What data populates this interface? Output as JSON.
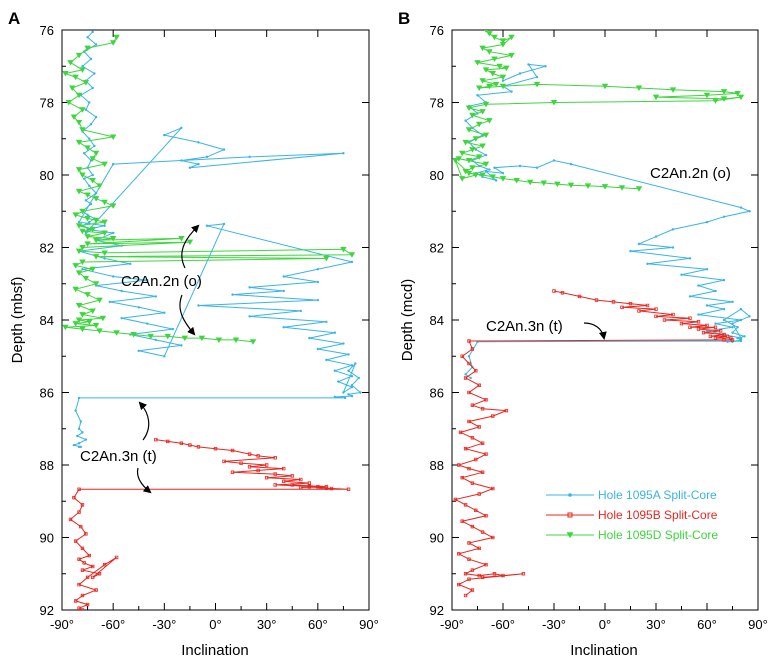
{
  "chart_data": [
    {
      "type": "line",
      "panel": "A",
      "xlabel": "Inclination",
      "ylabel": "Depth (mbsf)",
      "xlim": [
        -90,
        90
      ],
      "ylim": [
        92,
        76
      ],
      "xticks": [
        "-90°",
        "-60°",
        "-30°",
        "0°",
        "30°",
        "60°",
        "90°"
      ],
      "yticks": [
        "76",
        "78",
        "80",
        "82",
        "84",
        "86",
        "88",
        "90",
        "92"
      ],
      "series": [
        {
          "name": "Hole 1095A Split-Core",
          "color": "#3ab4e6",
          "x": [
            -72,
            -75,
            -70,
            -77,
            -73,
            -78,
            -71,
            -76,
            -72,
            -79,
            -74,
            -76,
            -70,
            -73,
            -78,
            -74,
            -71,
            -77,
            -73,
            -75,
            -72,
            -77,
            -74,
            -70,
            -76,
            -73,
            -78,
            -75,
            -71,
            -74,
            -78,
            -72,
            -76,
            -20,
            -30,
            -10,
            5,
            -5,
            -20,
            -10,
            -15,
            75,
            20,
            -60,
            -80,
            -65,
            -75,
            -60,
            -70,
            -55,
            -80,
            -65,
            -50,
            -78,
            -60,
            -40,
            -70,
            -55,
            -35,
            -62,
            -45,
            -30,
            -55,
            -40,
            -25,
            -50,
            -35,
            -20,
            -45,
            -30,
            5,
            -5,
            80,
            60,
            40,
            60,
            20,
            40,
            10,
            60,
            -10,
            50,
            20,
            65,
            40,
            70,
            55,
            75,
            60,
            78,
            65,
            80,
            70,
            80,
            72,
            80,
            75,
            82,
            78,
            84,
            80,
            85,
            78,
            80,
            70,
            76,
            -80,
            -82,
            -79,
            -80,
            -78,
            -81,
            -76,
            -80,
            -83,
            -79,
            -80
          ],
          "y": [
            76.05,
            76.2,
            76.4,
            76.6,
            76.8,
            77.0,
            77.2,
            77.4,
            77.6,
            77.8,
            78.0,
            78.2,
            78.4,
            78.6,
            78.8,
            79.0,
            79.2,
            79.4,
            79.6,
            79.8,
            80.0,
            80.1,
            80.3,
            80.5,
            80.7,
            80.8,
            81.0,
            81.1,
            81.2,
            81.3,
            81.4,
            81.5,
            81.6,
            78.7,
            78.9,
            79.1,
            79.3,
            79.5,
            79.6,
            79.7,
            79.8,
            79.4,
            79.5,
            79.7,
            81.3,
            81.4,
            81.5,
            81.6,
            81.8,
            81.95,
            82.1,
            82.3,
            82.45,
            82.6,
            82.8,
            82.9,
            83.05,
            83.2,
            83.35,
            83.5,
            83.65,
            83.8,
            83.95,
            84.1,
            84.25,
            84.4,
            84.55,
            84.7,
            84.85,
            85.0,
            81.35,
            81.4,
            82.4,
            82.6,
            82.8,
            82.95,
            83.1,
            83.2,
            83.3,
            83.45,
            83.6,
            83.75,
            83.9,
            84.05,
            84.2,
            84.35,
            84.5,
            84.65,
            84.8,
            84.95,
            85.1,
            85.25,
            85.4,
            85.55,
            85.7,
            85.85,
            86.0,
            85.2,
            85.4,
            85.6,
            85.8,
            86.0,
            86.05,
            86.1,
            86.12,
            86.15,
            86.15,
            86.5,
            86.8,
            87.0,
            87.1,
            87.2,
            87.3,
            87.4,
            87.45,
            87.5,
            87.5
          ]
        },
        {
          "name": "Hole 1095B Split-Core",
          "color": "#e8261f",
          "x": [
            -35,
            -28,
            -20,
            -15,
            -10,
            0,
            10,
            20,
            25,
            35,
            5,
            15,
            30,
            20,
            40,
            25,
            10,
            35,
            45,
            30,
            50,
            40,
            55,
            35,
            60,
            50,
            65,
            45,
            55,
            62,
            68,
            55,
            65,
            78,
            -80,
            -83,
            -78,
            -80,
            -85,
            -79,
            -76,
            -82,
            -78,
            -74,
            -80,
            -77,
            -72,
            -78,
            -68,
            -72,
            -58,
            -65,
            -75,
            -80,
            -70,
            -78,
            -82,
            -75,
            -80,
            -78
          ],
          "y": [
            87.3,
            87.35,
            87.4,
            87.45,
            87.5,
            87.55,
            87.6,
            87.7,
            87.75,
            87.8,
            87.9,
            87.95,
            88.0,
            88.05,
            88.1,
            88.15,
            88.2,
            88.25,
            88.3,
            88.35,
            88.4,
            88.45,
            88.5,
            88.55,
            88.6,
            88.62,
            88.6,
            88.55,
            88.58,
            88.62,
            88.65,
            88.6,
            88.64,
            88.67,
            88.67,
            88.9,
            89.1,
            89.3,
            89.5,
            89.7,
            89.9,
            90.1,
            90.3,
            90.5,
            90.6,
            90.7,
            90.8,
            90.9,
            91.0,
            91.1,
            90.55,
            90.75,
            91.1,
            91.3,
            91.45,
            91.6,
            91.75,
            91.85,
            91.95,
            92.0
          ]
        },
        {
          "name": "Hole 1095D Split-Core",
          "color": "#3dd63d",
          "x": [
            -58,
            -60,
            -75,
            -80,
            -85,
            -78,
            -88,
            -82,
            -76,
            -84,
            -80,
            -86,
            -78,
            -83,
            -80,
            -78,
            -60,
            -80,
            -75,
            -70,
            -72,
            -65,
            -80,
            -78,
            -72,
            -68,
            -80,
            -75,
            -70,
            -65,
            -60,
            -78,
            -82,
            -75,
            -70,
            -65,
            -80,
            -72,
            -78,
            -65,
            -75,
            -60,
            -70,
            -20,
            -75,
            -15,
            -78,
            -80,
            -65,
            75,
            80,
            -70,
            65,
            -78,
            -82,
            -72,
            -80,
            -76,
            -70,
            -82,
            -75,
            -68,
            -80,
            -72,
            -78,
            -66,
            -80,
            -74,
            -82,
            -70,
            -88,
            -78,
            -68,
            -58,
            -48,
            -38,
            -28,
            -18,
            -8,
            2,
            12,
            22
          ],
          "y": [
            76.2,
            76.35,
            76.5,
            76.7,
            76.9,
            77.1,
            77.2,
            77.3,
            77.45,
            77.6,
            77.8,
            78.0,
            78.2,
            78.4,
            78.55,
            78.75,
            78.95,
            79.1,
            79.25,
            79.4,
            79.55,
            79.7,
            79.85,
            80.0,
            80.15,
            80.3,
            80.45,
            80.55,
            80.65,
            80.75,
            80.85,
            81.0,
            81.1,
            81.2,
            81.25,
            81.3,
            81.4,
            81.5,
            81.55,
            81.6,
            81.7,
            81.75,
            81.8,
            81.75,
            81.9,
            81.85,
            82.0,
            82.1,
            82.15,
            82.05,
            82.2,
            82.25,
            82.3,
            82.4,
            82.5,
            82.6,
            82.7,
            82.85,
            83.0,
            83.15,
            83.3,
            83.45,
            83.6,
            83.75,
            83.85,
            83.95,
            84.0,
            84.05,
            84.1,
            84.15,
            84.2,
            84.25,
            84.3,
            84.35,
            84.4,
            84.45,
            84.45,
            84.5,
            84.5,
            84.55,
            84.55,
            84.6
          ]
        }
      ],
      "annotations": [
        {
          "text": "C2An.2n (o)",
          "x": -47,
          "y": 83.2
        },
        {
          "text": "C2An.3n (t)",
          "x": -55,
          "y": 87.9
        }
      ]
    },
    {
      "type": "line",
      "panel": "B",
      "xlabel": "Inclination",
      "ylabel": "Depth (mcd)",
      "xlim": [
        -90,
        90
      ],
      "ylim": [
        92,
        76
      ],
      "xticks": [
        "-90°",
        "-60°",
        "-30°",
        "0°",
        "30°",
        "60°",
        "90°"
      ],
      "yticks": [
        "76",
        "78",
        "80",
        "82",
        "84",
        "86",
        "88",
        "90",
        "92"
      ],
      "legend_position": "bottom-right",
      "series": [
        {
          "name": "Hole 1095A Split-Core",
          "color": "#3ab4e6",
          "x": [
            -60,
            -50,
            -35,
            -45,
            -40,
            -60,
            -55,
            -75,
            -70,
            -80,
            -75,
            -82,
            -78,
            -72,
            -80,
            -76,
            -70,
            -78,
            -74,
            -68,
            -76,
            -72,
            -64,
            -70,
            -60,
            -65,
            -50,
            -40,
            -30,
            -20,
            80,
            85,
            70,
            60,
            40,
            30,
            20,
            40,
            15,
            50,
            25,
            60,
            45,
            70,
            55,
            65,
            50,
            75,
            60,
            70,
            55,
            80,
            65,
            75,
            60,
            70,
            80,
            75,
            85,
            80,
            70,
            78,
            75,
            82,
            78,
            80,
            75,
            72,
            80,
            -75,
            -80,
            -78,
            -82,
            -79
          ],
          "y": [
            77.4,
            77.2,
            77.0,
            76.95,
            77.3,
            77.55,
            77.7,
            77.8,
            78.0,
            78.1,
            78.3,
            78.5,
            78.7,
            78.9,
            79.1,
            79.3,
            79.45,
            79.6,
            79.75,
            79.85,
            79.95,
            80.05,
            80.15,
            79.9,
            79.95,
            79.8,
            79.75,
            79.8,
            79.6,
            79.7,
            80.9,
            81.0,
            81.15,
            81.3,
            81.5,
            81.7,
            81.9,
            82.0,
            82.1,
            82.3,
            82.45,
            82.6,
            82.75,
            82.9,
            83.05,
            83.2,
            83.35,
            83.5,
            83.6,
            83.7,
            83.85,
            84.0,
            84.1,
            84.2,
            84.3,
            84.4,
            84.5,
            84.1,
            83.9,
            83.7,
            84.0,
            84.2,
            84.35,
            84.45,
            84.5,
            84.55,
            84.6,
            84.6,
            84.58,
            84.6,
            85.0,
            85.3,
            85.5,
            85.6
          ]
        },
        {
          "name": "Hole 1095B Split-Core",
          "color": "#e8261f",
          "x": [
            -30,
            -25,
            -15,
            -5,
            5,
            15,
            25,
            10,
            30,
            20,
            40,
            30,
            50,
            35,
            55,
            45,
            60,
            50,
            65,
            55,
            68,
            58,
            70,
            62,
            72,
            65,
            74,
            75,
            70,
            -80,
            -78,
            -84,
            -80,
            -76,
            -82,
            -74,
            -80,
            -70,
            -78,
            -72,
            -58,
            -66,
            -80,
            -74,
            -85,
            -78,
            -72,
            -82,
            -70,
            -76,
            -86,
            -80,
            -72,
            -84,
            -78,
            -66,
            -74,
            -88,
            -82,
            -76,
            -70,
            -84,
            -78,
            -72,
            -66,
            -80,
            -74,
            -86,
            -80,
            -70,
            -78,
            -82,
            -74,
            -65,
            -60,
            -72,
            -48,
            -80,
            -86,
            -78,
            -82
          ],
          "y": [
            83.2,
            83.25,
            83.35,
            83.45,
            83.5,
            83.55,
            83.6,
            83.65,
            83.7,
            83.75,
            83.85,
            83.9,
            83.95,
            84.0,
            84.05,
            84.1,
            84.15,
            84.2,
            84.2,
            84.25,
            84.3,
            84.35,
            84.4,
            84.45,
            84.45,
            84.5,
            84.5,
            84.55,
            84.55,
            84.58,
            84.8,
            85.0,
            85.2,
            85.4,
            85.6,
            85.8,
            86.0,
            86.2,
            86.35,
            86.45,
            86.5,
            86.65,
            86.8,
            86.95,
            87.1,
            87.25,
            87.4,
            87.55,
            87.7,
            87.85,
            88.0,
            88.1,
            88.2,
            88.35,
            88.5,
            88.65,
            88.8,
            88.95,
            89.1,
            89.25,
            89.4,
            89.55,
            89.7,
            89.85,
            90.0,
            90.15,
            90.3,
            90.45,
            90.6,
            90.75,
            90.9,
            91.0,
            91.05,
            91.0,
            91.05,
            91.1,
            91.0,
            91.15,
            91.3,
            91.45,
            91.6
          ]
        },
        {
          "name": "Hole 1095D Split-Core",
          "color": "#3dd63d",
          "x": [
            -70,
            -68,
            -65,
            -60,
            -55,
            -60,
            -72,
            -68,
            -55,
            -65,
            -75,
            -62,
            -58,
            -70,
            -66,
            -60,
            -72,
            -64,
            -68,
            -74,
            -60,
            -40,
            0,
            20,
            40,
            70,
            78,
            60,
            30,
            70,
            80,
            65,
            -30,
            -70,
            -80,
            -72,
            -78,
            -68,
            -74,
            -80,
            -70,
            -76,
            -82,
            -72,
            -78,
            -84,
            -74,
            -80,
            -86,
            -70,
            -78,
            -82,
            -76,
            -84,
            -88,
            -80,
            -72,
            -66,
            -60,
            -52,
            -44,
            -36,
            -28,
            -20,
            -10,
            0,
            10,
            20
          ],
          "y": [
            76.0,
            76.1,
            76.2,
            76.3,
            76.2,
            76.4,
            76.5,
            76.6,
            76.7,
            76.8,
            76.9,
            77.0,
            77.05,
            77.1,
            77.2,
            77.3,
            77.4,
            77.5,
            77.55,
            77.6,
            77.55,
            77.5,
            77.55,
            77.6,
            77.65,
            77.7,
            77.75,
            77.8,
            77.85,
            77.9,
            77.85,
            77.95,
            78.0,
            78.05,
            78.15,
            78.25,
            78.35,
            78.5,
            78.6,
            78.75,
            78.9,
            79.0,
            79.1,
            79.2,
            79.3,
            79.4,
            79.5,
            79.6,
            79.55,
            79.7,
            79.8,
            79.9,
            80.0,
            80.1,
            79.6,
            79.95,
            80.0,
            80.05,
            80.1,
            80.15,
            80.2,
            80.22,
            80.25,
            80.28,
            80.3,
            80.32,
            80.35,
            80.38
          ]
        }
      ],
      "annotations": [
        {
          "text": "C2An.2n (o)",
          "x": 58,
          "y": 80.0
        },
        {
          "text": "C2An.3n (t)",
          "x": -35,
          "y": 84.1
        }
      ]
    }
  ]
}
